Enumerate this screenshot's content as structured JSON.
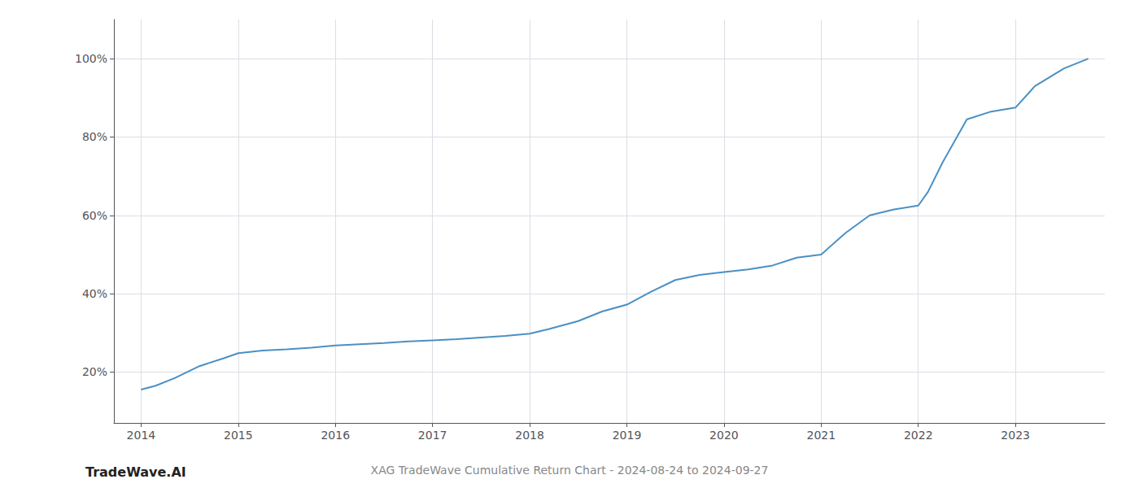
{
  "chart_data": {
    "type": "line",
    "title": "XAG TradeWave Cumulative Return Chart - 2024-08-24 to 2024-09-27",
    "annotations": [
      "TradeWave.AI"
    ],
    "x": [
      2014.0,
      2014.15,
      2014.35,
      2014.6,
      2014.85,
      2015.0,
      2015.25,
      2015.5,
      2015.75,
      2016.0,
      2016.25,
      2016.5,
      2016.75,
      2017.0,
      2017.25,
      2017.5,
      2017.75,
      2018.0,
      2018.2,
      2018.5,
      2018.75,
      2019.0,
      2019.25,
      2019.5,
      2019.75,
      2020.0,
      2020.25,
      2020.5,
      2020.75,
      2021.0,
      2021.25,
      2021.5,
      2021.75,
      2022.0,
      2022.1,
      2022.25,
      2022.5,
      2022.75,
      2023.0,
      2023.2,
      2023.5,
      2023.75
    ],
    "values": [
      0.155,
      0.165,
      0.185,
      0.215,
      0.235,
      0.248,
      0.255,
      0.258,
      0.262,
      0.268,
      0.271,
      0.274,
      0.278,
      0.281,
      0.284,
      0.288,
      0.292,
      0.298,
      0.31,
      0.33,
      0.355,
      0.372,
      0.405,
      0.435,
      0.448,
      0.455,
      0.462,
      0.472,
      0.492,
      0.5,
      0.555,
      0.6,
      0.615,
      0.625,
      0.66,
      0.735,
      0.845,
      0.865,
      0.875,
      0.93,
      0.975,
      1.0
    ],
    "color": "#4a90c4",
    "xlim": [
      2013.72,
      2023.92
    ],
    "xticks": [
      2014,
      2015,
      2016,
      2017,
      2018,
      2019,
      2020,
      2021,
      2022,
      2023
    ],
    "ylim": [
      0.07,
      1.1
    ],
    "yticks": [
      {
        "value": 0.2,
        "label": "20%"
      },
      {
        "value": 0.4,
        "label": "40%"
      },
      {
        "value": 0.6,
        "label": "60%"
      },
      {
        "value": 0.8,
        "label": "80%"
      },
      {
        "value": 1.0,
        "label": "100%"
      }
    ],
    "grid": true
  }
}
